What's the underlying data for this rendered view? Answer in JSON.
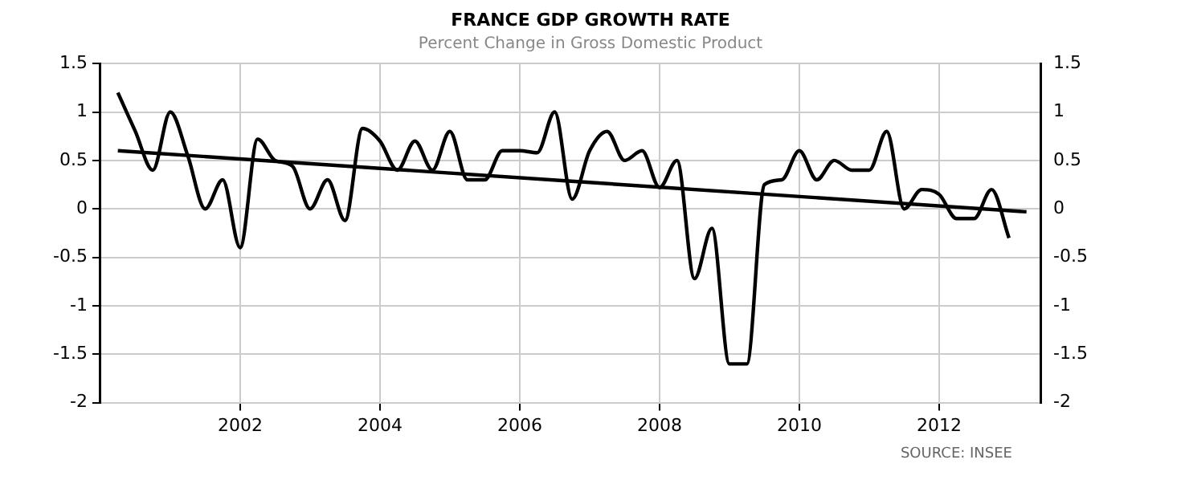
{
  "chart_data": {
    "type": "line",
    "title": "FRANCE GDP GROWTH RATE",
    "subtitle": "Percent Change in Gross Domestic Product",
    "annotations": [
      "SOURCE: INSEE"
    ],
    "series": [
      {
        "color": "#000000",
        "x": [
          2000.25,
          2000.5,
          2000.75,
          2001,
          2001.25,
          2001.5,
          2001.75,
          2002,
          2002.25,
          2002.5,
          2002.75,
          2003,
          2003.25,
          2003.5,
          2003.75,
          2004,
          2004.25,
          2004.5,
          2004.75,
          2005,
          2005.25,
          2005.5,
          2005.75,
          2006,
          2006.25,
          2006.5,
          2006.75,
          2007,
          2007.25,
          2007.5,
          2007.75,
          2008,
          2008.25,
          2008.5,
          2008.75,
          2009,
          2009.25,
          2009.5,
          2009.75,
          2010,
          2010.25,
          2010.5,
          2010.75,
          2011,
          2011.25,
          2011.5,
          2011.75,
          2012,
          2012.25,
          2012.5,
          2012.75,
          2013
        ],
        "values": [
          1.2,
          0.8,
          0.4,
          1.0,
          0.55,
          0.0,
          0.3,
          -0.4,
          0.72,
          0.5,
          0.44,
          0.0,
          0.3,
          -0.12,
          0.83,
          0.7,
          0.4,
          0.7,
          0.4,
          0.8,
          0.3,
          0.3,
          0.6,
          0.6,
          0.58,
          1.0,
          0.1,
          0.6,
          0.8,
          0.5,
          0.6,
          0.22,
          0.5,
          -0.72,
          -0.2,
          -1.6,
          -1.6,
          0.25,
          0.3,
          0.6,
          0.3,
          0.5,
          0.4,
          0.4,
          0.8,
          0.0,
          0.2,
          0.15,
          -0.1,
          -0.1,
          0.2,
          -0.3
        ]
      },
      {
        "type": "line",
        "color": "#000000",
        "x": [
          2000.25,
          2013.25
        ],
        "values": [
          0.6,
          -0.03
        ]
      }
    ],
    "xlim": [
      2000,
      2013.45
    ],
    "xticks": [
      2002,
      2004,
      2006,
      2008,
      2010,
      2012
    ],
    "ylim": [
      -2,
      1.5
    ],
    "yticks": [
      -2,
      -1.5,
      -1,
      -0.5,
      0,
      0.5,
      1,
      1.5
    ],
    "y2lim": [
      -2,
      1.5
    ],
    "y2ticks": [
      -2,
      -1.5,
      -1,
      -0.5,
      0,
      0.5,
      1,
      1.5
    ],
    "grid": true,
    "legend": false,
    "marker": "none",
    "line_style": "solid"
  }
}
